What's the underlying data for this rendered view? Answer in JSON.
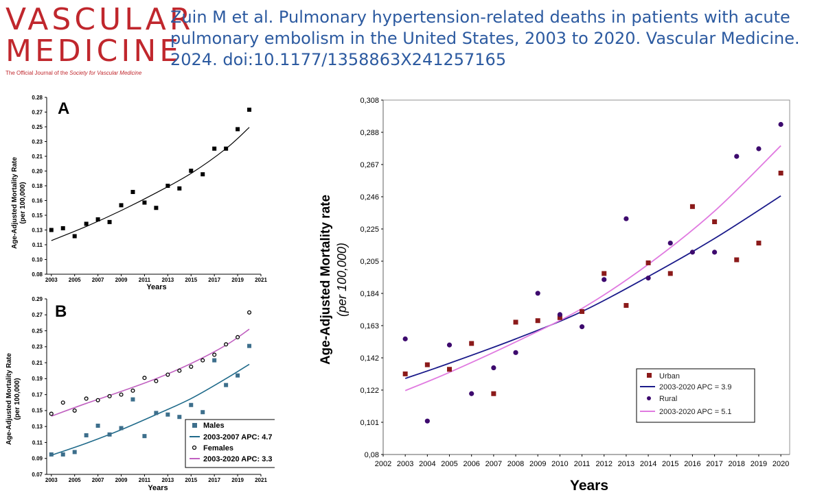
{
  "header": {
    "logo_line1": "VASCULAR",
    "logo_line2": "MEDICINE",
    "logo_tagline_pre": "The Official Journal of the ",
    "logo_tagline_society": "Society for Vascular Medicine",
    "citation": "Zuin M et al. Pulmonary hypertension-related deaths in patients with acute pulmonary embolism in the United States, 2003 to 2020. Vascular Medicine. 2024. doi:10.1177/1358863X241257165"
  },
  "colors": {
    "males_marker": "#3d6f8c",
    "males_line": "#1f6a8a",
    "females_line": "#c060c0",
    "urban_marker": "#8b1a1a",
    "urban_line": "#1a1a8a",
    "rural_marker": "#3d0a6e",
    "rural_line": "#e07ae0"
  },
  "chart_data": [
    {
      "type": "scatter",
      "panel_label": "A",
      "xlabel": "Years",
      "ylabel": "Age-Adjusted Mortality Rate",
      "ylabel2": "(per 100,000)",
      "x_ticks": [
        "2003",
        "2005",
        "2007",
        "2009",
        "2011",
        "2013",
        "2015",
        "2017",
        "2019",
        "2021"
      ],
      "y_ticks": [
        "0.08",
        "0.10",
        "0.11",
        "0.13",
        "0.15",
        "0.16",
        "0.18",
        "0.20",
        "0.21",
        "0.23",
        "0.25",
        "0.27",
        "0.28"
      ],
      "xlim": [
        2002.6,
        2021
      ],
      "ylim": [
        0.08,
        0.28
      ],
      "series": [
        {
          "x": [
            2003,
            2004,
            2005,
            2006,
            2007,
            2008,
            2009,
            2010,
            2011,
            2012,
            2013,
            2014,
            2015,
            2016,
            2017,
            2018,
            2019,
            2020
          ],
          "values": [
            0.13,
            0.132,
            0.123,
            0.137,
            0.142,
            0.139,
            0.158,
            0.173,
            0.161,
            0.155,
            0.18,
            0.177,
            0.197,
            0.193,
            0.222,
            0.222,
            0.244,
            0.266
          ]
        }
      ],
      "trend": {
        "x": [
          2003,
          2006,
          2009,
          2012,
          2015,
          2018,
          2020
        ],
        "values": [
          0.118,
          0.134,
          0.152,
          0.172,
          0.194,
          0.222,
          0.246
        ]
      }
    },
    {
      "type": "scatter",
      "panel_label": "B",
      "xlabel": "Years",
      "ylabel": "Age-Adjusted Mortality Rate",
      "ylabel2": "(per 100,000)",
      "x_ticks": [
        "2003",
        "2005",
        "2007",
        "2009",
        "2011",
        "2013",
        "2015",
        "2017",
        "2019",
        "2021"
      ],
      "y_ticks": [
        "0.07",
        "0.09",
        "0.11",
        "0.13",
        "0.15",
        "0.17",
        "0.19",
        "0.21",
        "0.23",
        "0.25",
        "0.27",
        "0.29"
      ],
      "xlim": [
        2002.6,
        2021
      ],
      "ylim": [
        0.07,
        0.29
      ],
      "legend": [
        {
          "label": "Males",
          "kind": "square"
        },
        {
          "label": "2003-2007 APC: 4.7",
          "kind": "line-males"
        },
        {
          "label": "Females",
          "kind": "circle"
        },
        {
          "label": "2003-2020 APC: 3.3",
          "kind": "line-females"
        }
      ],
      "series": [
        {
          "name": "Males",
          "x": [
            2003,
            2004,
            2005,
            2006,
            2007,
            2008,
            2009,
            2010,
            2011,
            2012,
            2013,
            2014,
            2015,
            2016,
            2017,
            2018,
            2019,
            2020
          ],
          "values": [
            0.095,
            0.095,
            0.098,
            0.119,
            0.131,
            0.12,
            0.128,
            0.164,
            0.118,
            0.147,
            0.145,
            0.142,
            0.157,
            0.148,
            0.213,
            0.182,
            0.194,
            0.231
          ]
        },
        {
          "name": "Females",
          "x": [
            2003,
            2004,
            2005,
            2006,
            2007,
            2008,
            2009,
            2010,
            2011,
            2012,
            2013,
            2014,
            2015,
            2016,
            2017,
            2018,
            2019,
            2020
          ],
          "values": [
            0.146,
            0.16,
            0.15,
            0.165,
            0.163,
            0.168,
            0.17,
            0.175,
            0.191,
            0.187,
            0.195,
            0.2,
            0.205,
            0.213,
            0.22,
            0.233,
            0.242,
            0.273
          ]
        }
      ],
      "trends": [
        {
          "x": [
            2003,
            2006,
            2009,
            2012,
            2015,
            2018,
            2020
          ],
          "values": [
            0.094,
            0.109,
            0.126,
            0.145,
            0.165,
            0.19,
            0.208
          ]
        },
        {
          "x": [
            2003,
            2006,
            2009,
            2012,
            2015,
            2018,
            2020
          ],
          "values": [
            0.143,
            0.159,
            0.174,
            0.19,
            0.209,
            0.232,
            0.252
          ]
        }
      ]
    },
    {
      "type": "scatter",
      "xlabel": "Years",
      "ylabel": "Age-Adjusted Mortality rate",
      "ylabel2": "(per 100,000)",
      "x_ticks": [
        "2002",
        "2003",
        "2004",
        "2005",
        "2006",
        "2007",
        "2008",
        "2009",
        "2010",
        "2011",
        "2012",
        "2013",
        "2014",
        "2015",
        "2016",
        "2017",
        "2018",
        "2019",
        "2020"
      ],
      "y_ticks": [
        "0,08",
        "0,101",
        "0,122",
        "0,142",
        "0,163",
        "0,184",
        "0,205",
        "0,225",
        "0,246",
        "0,267",
        "0,288",
        "0,308"
      ],
      "xlim": [
        2002,
        2020.4
      ],
      "ylim": [
        0.08,
        0.313
      ],
      "legend": [
        {
          "label": "Urban",
          "kind": "urban-square"
        },
        {
          "label": "2003-2020 APC  = 3.9",
          "kind": "urban-line"
        },
        {
          "label": "Rural",
          "kind": "rural-dot"
        },
        {
          "label": "2003-2020 APC  = 5.1",
          "kind": "rural-line"
        }
      ],
      "series": [
        {
          "name": "Urban",
          "x": [
            2003,
            2004,
            2005,
            2006,
            2007,
            2008,
            2009,
            2010,
            2011,
            2012,
            2013,
            2014,
            2015,
            2016,
            2017,
            2018,
            2019,
            2020
          ],
          "values": [
            0.133,
            0.139,
            0.136,
            0.153,
            0.12,
            0.167,
            0.168,
            0.17,
            0.174,
            0.199,
            0.178,
            0.206,
            0.199,
            0.243,
            0.233,
            0.208,
            0.219,
            0.265
          ]
        },
        {
          "name": "Rural",
          "x": [
            2003,
            2004,
            2005,
            2006,
            2007,
            2008,
            2009,
            2010,
            2011,
            2012,
            2013,
            2014,
            2015,
            2016,
            2017,
            2018,
            2019,
            2020
          ],
          "values": [
            0.156,
            0.102,
            0.152,
            0.12,
            0.137,
            0.147,
            0.186,
            0.172,
            0.164,
            0.195,
            0.235,
            0.196,
            0.219,
            0.213,
            0.213,
            0.276,
            0.281,
            0.297
          ]
        }
      ],
      "trends": [
        {
          "x": [
            2003,
            2005,
            2008,
            2011,
            2014,
            2017,
            2020
          ],
          "values": [
            0.13,
            0.14,
            0.156,
            0.174,
            0.197,
            0.222,
            0.25
          ]
        },
        {
          "x": [
            2003,
            2005,
            2008,
            2011,
            2014,
            2017,
            2020
          ],
          "values": [
            0.122,
            0.134,
            0.154,
            0.176,
            0.205,
            0.24,
            0.283
          ]
        }
      ]
    }
  ]
}
